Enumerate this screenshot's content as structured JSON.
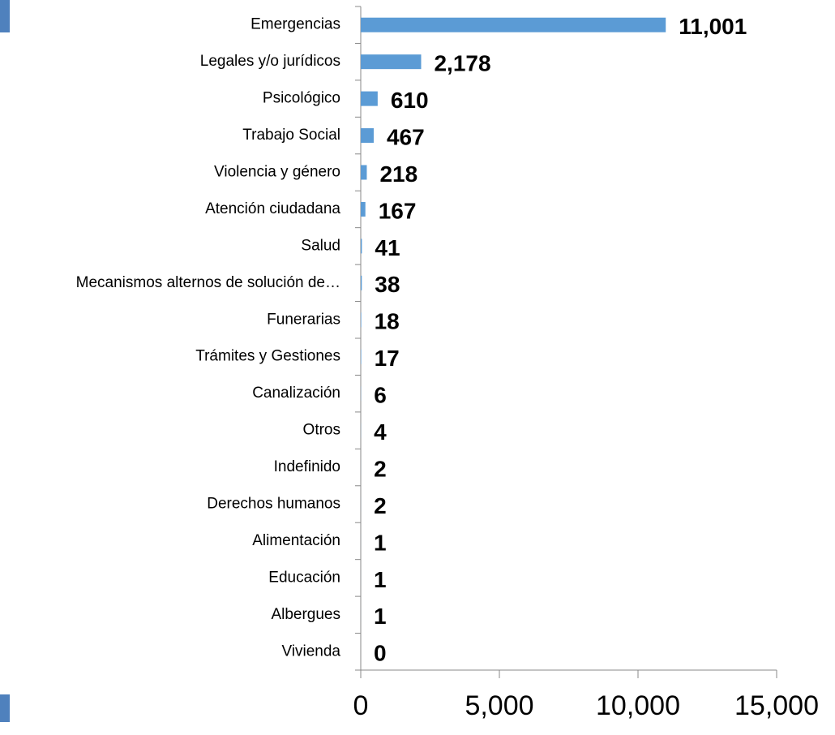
{
  "chart_data": {
    "type": "bar",
    "orientation": "horizontal",
    "categories": [
      "Emergencias",
      "Legales y/o jurídicos",
      "Psicológico",
      "Trabajo Social",
      "Violencia y género",
      "Atención ciudadana",
      "Salud",
      "Mecanismos alternos de solución de…",
      "Funerarias",
      "Trámites y Gestiones",
      "Canalización",
      "Otros",
      "Indefinido",
      "Derechos humanos",
      "Alimentación",
      "Educación",
      "Albergues",
      "Vivienda"
    ],
    "values": [
      11001,
      2178,
      610,
      467,
      218,
      167,
      41,
      38,
      18,
      17,
      6,
      4,
      2,
      2,
      1,
      1,
      1,
      0
    ],
    "value_labels": [
      "11,001",
      "2,178",
      "610",
      "467",
      "218",
      "167",
      "41",
      "38",
      "18",
      "17",
      "6",
      "4",
      "2",
      "2",
      "1",
      "1",
      "1",
      "0"
    ],
    "color": "#5b9bd5",
    "xlim": [
      0,
      15000
    ],
    "xticks": [
      0,
      {
        "value": 5000,
        "label": "5,000"
      },
      {
        "value": 10000,
        "label": "10,000"
      },
      {
        "value": 15000,
        "label": "15,000"
      }
    ],
    "grid": false
  }
}
